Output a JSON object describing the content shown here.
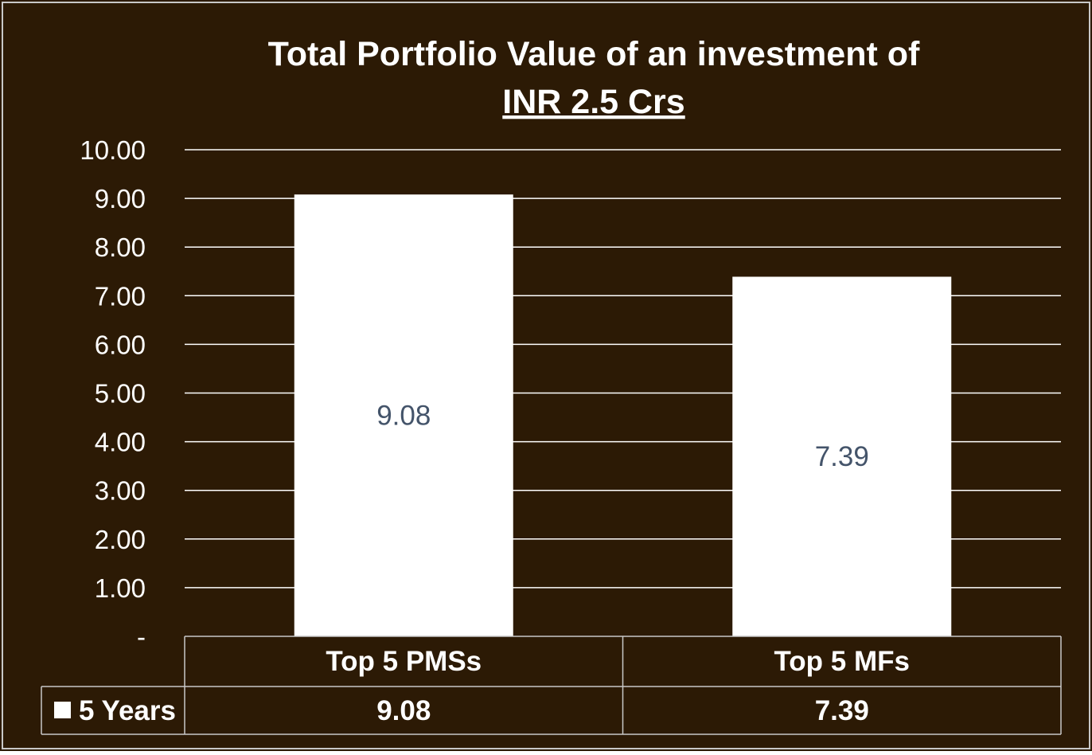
{
  "colors": {
    "background": "#2c1a05",
    "bar": "#ffffff",
    "gridline": "#ffffff",
    "text": "#ffffff",
    "data_label": "#44546a",
    "frame": "#c8c8c8"
  },
  "chart_data": {
    "type": "bar",
    "title_line1": "Total Portfolio Value of an investment of",
    "title_line2": "INR 2.5 Crs",
    "categories": [
      "Top 5 PMSs",
      "Top 5 MFs"
    ],
    "series": [
      {
        "name": "5 Years",
        "values": [
          9.08,
          7.39
        ],
        "data_labels": [
          "9.08",
          "7.39"
        ]
      }
    ],
    "ylim": [
      0,
      10
    ],
    "y_ticks": [
      0,
      1,
      2,
      3,
      4,
      5,
      6,
      7,
      8,
      9,
      10
    ],
    "y_tick_labels": [
      "-",
      "1.00",
      "2.00",
      "3.00",
      "4.00",
      "5.00",
      "6.00",
      "7.00",
      "8.00",
      "9.00",
      "10.00"
    ],
    "grid": true,
    "legend": "data-table",
    "data_table": {
      "row_label": "5 Years",
      "values": [
        "9.08",
        "7.39"
      ]
    }
  }
}
